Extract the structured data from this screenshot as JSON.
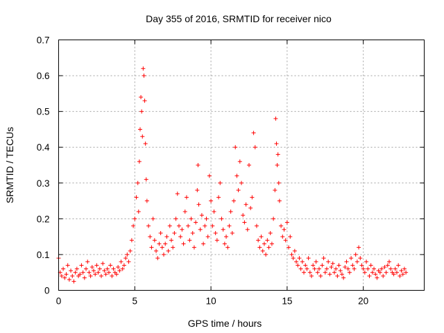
{
  "chart_data": {
    "type": "scatter",
    "title": "Day 355 of 2016, SRMTID for receiver nico",
    "xlabel": "GPS time / hours",
    "ylabel": "SRMTID / TECUs",
    "xlim": [
      0,
      24
    ],
    "ylim": [
      0,
      0.7
    ],
    "x_ticks": [
      "0",
      "5",
      "10",
      "15",
      "20"
    ],
    "x_tick_values": [
      0,
      5,
      10,
      15,
      20
    ],
    "y_ticks": [
      "0",
      "0.1",
      "0.2",
      "0.3",
      "0.4",
      "0.5",
      "0.6",
      "0.7"
    ],
    "y_tick_values": [
      0,
      0.1,
      0.2,
      0.3,
      0.4,
      0.5,
      0.6,
      0.7
    ],
    "grid": true,
    "marker": "plus",
    "marker_color": "#ff0000",
    "series": [
      {
        "name": "SRMTID",
        "points": [
          [
            0.0,
            0.09
          ],
          [
            0.1,
            0.05
          ],
          [
            0.2,
            0.04
          ],
          [
            0.3,
            0.06
          ],
          [
            0.4,
            0.035
          ],
          [
            0.5,
            0.045
          ],
          [
            0.6,
            0.07
          ],
          [
            0.7,
            0.03
          ],
          [
            0.8,
            0.055
          ],
          [
            0.9,
            0.04
          ],
          [
            1.0,
            0.025
          ],
          [
            1.1,
            0.05
          ],
          [
            1.2,
            0.06
          ],
          [
            1.3,
            0.04
          ],
          [
            1.4,
            0.045
          ],
          [
            1.5,
            0.07
          ],
          [
            1.6,
            0.05
          ],
          [
            1.7,
            0.035
          ],
          [
            1.8,
            0.06
          ],
          [
            1.9,
            0.08
          ],
          [
            2.0,
            0.05
          ],
          [
            2.1,
            0.04
          ],
          [
            2.2,
            0.065
          ],
          [
            2.3,
            0.055
          ],
          [
            2.4,
            0.045
          ],
          [
            2.5,
            0.07
          ],
          [
            2.6,
            0.05
          ],
          [
            2.7,
            0.06
          ],
          [
            2.8,
            0.04
          ],
          [
            2.9,
            0.075
          ],
          [
            3.0,
            0.055
          ],
          [
            3.1,
            0.045
          ],
          [
            3.2,
            0.06
          ],
          [
            3.3,
            0.05
          ],
          [
            3.4,
            0.07
          ],
          [
            3.5,
            0.04
          ],
          [
            3.6,
            0.06
          ],
          [
            3.7,
            0.05
          ],
          [
            3.8,
            0.045
          ],
          [
            3.9,
            0.065
          ],
          [
            4.0,
            0.055
          ],
          [
            4.1,
            0.08
          ],
          [
            4.2,
            0.06
          ],
          [
            4.3,
            0.07
          ],
          [
            4.4,
            0.09
          ],
          [
            4.5,
            0.1
          ],
          [
            4.6,
            0.08
          ],
          [
            4.7,
            0.11
          ],
          [
            4.8,
            0.14
          ],
          [
            4.9,
            0.18
          ],
          [
            5.0,
            0.2
          ],
          [
            5.1,
            0.26
          ],
          [
            5.2,
            0.3
          ],
          [
            5.25,
            0.22
          ],
          [
            5.3,
            0.36
          ],
          [
            5.35,
            0.45
          ],
          [
            5.4,
            0.54
          ],
          [
            5.45,
            0.5
          ],
          [
            5.5,
            0.43
          ],
          [
            5.55,
            0.62
          ],
          [
            5.6,
            0.6
          ],
          [
            5.65,
            0.53
          ],
          [
            5.7,
            0.41
          ],
          [
            5.75,
            0.31
          ],
          [
            5.8,
            0.25
          ],
          [
            5.9,
            0.18
          ],
          [
            6.0,
            0.15
          ],
          [
            6.1,
            0.12
          ],
          [
            6.2,
            0.2
          ],
          [
            6.3,
            0.14
          ],
          [
            6.4,
            0.11
          ],
          [
            6.5,
            0.09
          ],
          [
            6.6,
            0.13
          ],
          [
            6.7,
            0.16
          ],
          [
            6.8,
            0.12
          ],
          [
            6.9,
            0.1
          ],
          [
            7.0,
            0.13
          ],
          [
            7.1,
            0.15
          ],
          [
            7.2,
            0.11
          ],
          [
            7.3,
            0.18
          ],
          [
            7.4,
            0.14
          ],
          [
            7.5,
            0.12
          ],
          [
            7.6,
            0.16
          ],
          [
            7.7,
            0.2
          ],
          [
            7.8,
            0.27
          ],
          [
            7.9,
            0.18
          ],
          [
            8.0,
            0.15
          ],
          [
            8.1,
            0.17
          ],
          [
            8.2,
            0.13
          ],
          [
            8.3,
            0.22
          ],
          [
            8.4,
            0.26
          ],
          [
            8.5,
            0.18
          ],
          [
            8.6,
            0.14
          ],
          [
            8.7,
            0.2
          ],
          [
            8.8,
            0.16
          ],
          [
            8.9,
            0.12
          ],
          [
            9.0,
            0.19
          ],
          [
            9.1,
            0.28
          ],
          [
            9.15,
            0.35
          ],
          [
            9.2,
            0.24
          ],
          [
            9.3,
            0.17
          ],
          [
            9.4,
            0.21
          ],
          [
            9.5,
            0.13
          ],
          [
            9.6,
            0.18
          ],
          [
            9.7,
            0.2
          ],
          [
            9.8,
            0.15
          ],
          [
            9.9,
            0.32
          ],
          [
            10.0,
            0.25
          ],
          [
            10.1,
            0.18
          ],
          [
            10.2,
            0.22
          ],
          [
            10.3,
            0.16
          ],
          [
            10.4,
            0.14
          ],
          [
            10.5,
            0.26
          ],
          [
            10.6,
            0.3
          ],
          [
            10.7,
            0.2
          ],
          [
            10.8,
            0.17
          ],
          [
            10.9,
            0.13
          ],
          [
            11.0,
            0.15
          ],
          [
            11.1,
            0.12
          ],
          [
            11.2,
            0.18
          ],
          [
            11.3,
            0.22
          ],
          [
            11.4,
            0.16
          ],
          [
            11.5,
            0.25
          ],
          [
            11.6,
            0.4
          ],
          [
            11.7,
            0.32
          ],
          [
            11.8,
            0.28
          ],
          [
            11.9,
            0.36
          ],
          [
            12.0,
            0.3
          ],
          [
            12.1,
            0.21
          ],
          [
            12.2,
            0.19
          ],
          [
            12.3,
            0.24
          ],
          [
            12.4,
            0.17
          ],
          [
            12.5,
            0.35
          ],
          [
            12.6,
            0.23
          ],
          [
            12.7,
            0.26
          ],
          [
            12.8,
            0.44
          ],
          [
            12.9,
            0.4
          ],
          [
            13.0,
            0.18
          ],
          [
            13.1,
            0.14
          ],
          [
            13.2,
            0.12
          ],
          [
            13.3,
            0.15
          ],
          [
            13.4,
            0.11
          ],
          [
            13.5,
            0.13
          ],
          [
            13.6,
            0.1
          ],
          [
            13.7,
            0.14
          ],
          [
            13.8,
            0.12
          ],
          [
            13.9,
            0.16
          ],
          [
            14.0,
            0.13
          ],
          [
            14.1,
            0.2
          ],
          [
            14.2,
            0.28
          ],
          [
            14.25,
            0.48
          ],
          [
            14.3,
            0.41
          ],
          [
            14.35,
            0.35
          ],
          [
            14.4,
            0.38
          ],
          [
            14.45,
            0.3
          ],
          [
            14.5,
            0.25
          ],
          [
            14.6,
            0.18
          ],
          [
            14.7,
            0.15
          ],
          [
            14.8,
            0.17
          ],
          [
            14.9,
            0.14
          ],
          [
            15.0,
            0.19
          ],
          [
            15.1,
            0.12
          ],
          [
            15.2,
            0.15
          ],
          [
            15.3,
            0.1
          ],
          [
            15.4,
            0.09
          ],
          [
            15.5,
            0.11
          ],
          [
            15.6,
            0.08
          ],
          [
            15.7,
            0.07
          ],
          [
            15.8,
            0.09
          ],
          [
            15.9,
            0.06
          ],
          [
            16.0,
            0.08
          ],
          [
            16.1,
            0.05
          ],
          [
            16.2,
            0.07
          ],
          [
            16.3,
            0.06
          ],
          [
            16.4,
            0.09
          ],
          [
            16.5,
            0.05
          ],
          [
            16.6,
            0.04
          ],
          [
            16.7,
            0.07
          ],
          [
            16.8,
            0.06
          ],
          [
            16.9,
            0.08
          ],
          [
            17.0,
            0.05
          ],
          [
            17.1,
            0.06
          ],
          [
            17.2,
            0.04
          ],
          [
            17.3,
            0.07
          ],
          [
            17.4,
            0.09
          ],
          [
            17.5,
            0.05
          ],
          [
            17.6,
            0.06
          ],
          [
            17.7,
            0.08
          ],
          [
            17.8,
            0.045
          ],
          [
            17.9,
            0.065
          ],
          [
            18.0,
            0.075
          ],
          [
            18.1,
            0.05
          ],
          [
            18.2,
            0.06
          ],
          [
            18.3,
            0.04
          ],
          [
            18.4,
            0.07
          ],
          [
            18.5,
            0.055
          ],
          [
            18.6,
            0.045
          ],
          [
            18.7,
            0.035
          ],
          [
            18.8,
            0.065
          ],
          [
            18.9,
            0.08
          ],
          [
            19.0,
            0.06
          ],
          [
            19.1,
            0.05
          ],
          [
            19.2,
            0.09
          ],
          [
            19.3,
            0.07
          ],
          [
            19.4,
            0.06
          ],
          [
            19.5,
            0.1
          ],
          [
            19.6,
            0.08
          ],
          [
            19.7,
            0.12
          ],
          [
            19.8,
            0.09
          ],
          [
            19.9,
            0.07
          ],
          [
            20.0,
            0.06
          ],
          [
            20.1,
            0.05
          ],
          [
            20.2,
            0.08
          ],
          [
            20.3,
            0.06
          ],
          [
            20.4,
            0.04
          ],
          [
            20.5,
            0.07
          ],
          [
            20.6,
            0.05
          ],
          [
            20.7,
            0.06
          ],
          [
            20.8,
            0.045
          ],
          [
            20.9,
            0.035
          ],
          [
            21.0,
            0.055
          ],
          [
            21.1,
            0.05
          ],
          [
            21.2,
            0.06
          ],
          [
            21.3,
            0.04
          ],
          [
            21.4,
            0.065
          ],
          [
            21.5,
            0.05
          ],
          [
            21.6,
            0.07
          ],
          [
            21.7,
            0.08
          ],
          [
            21.8,
            0.06
          ],
          [
            21.9,
            0.05
          ],
          [
            22.0,
            0.045
          ],
          [
            22.1,
            0.06
          ],
          [
            22.2,
            0.05
          ],
          [
            22.3,
            0.07
          ],
          [
            22.4,
            0.04
          ],
          [
            22.5,
            0.055
          ],
          [
            22.6,
            0.045
          ],
          [
            22.7,
            0.06
          ],
          [
            22.8,
            0.05
          ]
        ]
      }
    ]
  }
}
